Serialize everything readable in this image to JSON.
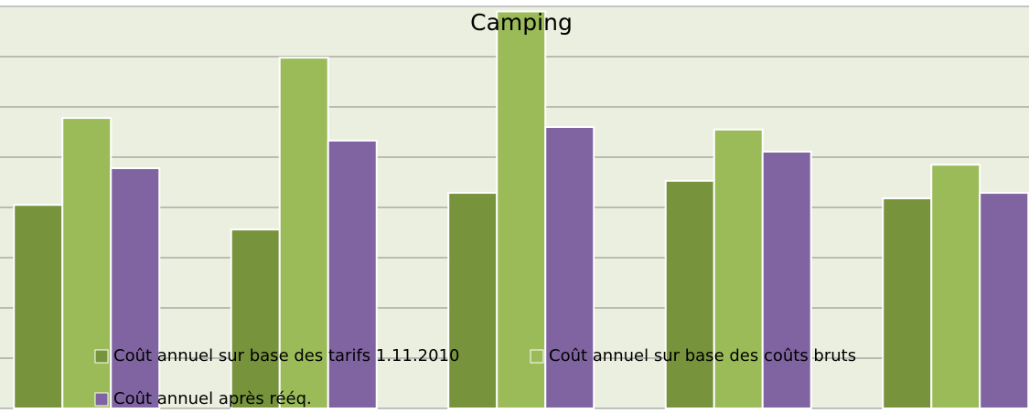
{
  "chart_data": {
    "type": "bar",
    "title": "Camping",
    "categories": [
      null,
      null,
      null,
      null,
      null
    ],
    "series": [
      {
        "name": "Coût annuel sur base des tarifs 1.11.2010",
        "color": "#77933c",
        "values": [
          4.05,
          3.56,
          4.29,
          4.53,
          4.18
        ]
      },
      {
        "name": "Coût annuel sur base des coûts bruts",
        "color": "#9bbb59",
        "values": [
          5.78,
          6.98,
          7.9,
          5.55,
          4.85
        ]
      },
      {
        "name": "Coût annuel après rééq.",
        "color": "#8064a2",
        "values": [
          4.78,
          5.33,
          5.6,
          5.11,
          4.29
        ]
      }
    ],
    "ylim": [
      0,
      8
    ],
    "yticks": [
      0,
      1,
      2,
      3,
      4,
      5,
      6,
      7,
      8
    ],
    "grid": true
  }
}
